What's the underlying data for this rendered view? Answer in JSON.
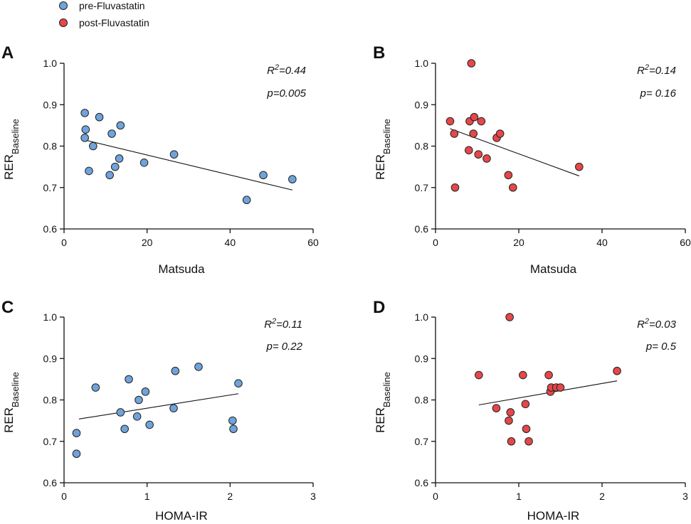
{
  "legend": [
    {
      "label": "pre-Fluvastatin",
      "color": "#6FA3DA"
    },
    {
      "label": "post-Fluvastatin",
      "color": "#E5474A"
    }
  ],
  "colors": {
    "axis": "#111111",
    "marker_edge": "#222222",
    "regression": "#111111"
  },
  "chart_data": [
    {
      "panel": "A",
      "type": "scatter",
      "series": "pre-Fluvastatin",
      "color": "#6FA3DA",
      "xlabel": "Matsuda",
      "ylabel_main": "RER",
      "ylabel_sub": "Baseline",
      "xlim": [
        0,
        60
      ],
      "ylim": [
        0.6,
        1.0
      ],
      "xticks": [
        "0",
        "20",
        "40",
        "60"
      ],
      "yticks": [
        "0.6",
        "0.7",
        "0.8",
        "0.9",
        "1.0"
      ],
      "x": [
        5,
        5.2,
        5,
        6,
        7,
        8.5,
        11,
        11.5,
        12.3,
        13.3,
        13.6,
        19.3,
        26.5,
        44,
        48,
        55
      ],
      "y": [
        0.88,
        0.84,
        0.82,
        0.74,
        0.8,
        0.87,
        0.73,
        0.83,
        0.75,
        0.77,
        0.85,
        0.76,
        0.78,
        0.67,
        0.73,
        0.72
      ],
      "fit": [
        [
          4.5,
          0.816
        ],
        [
          55,
          0.694
        ]
      ],
      "r2_prefix": "R",
      "r2_sup": "2",
      "r2_value": "=0.44",
      "p_text": "p=0.005"
    },
    {
      "panel": "B",
      "type": "scatter",
      "series": "post-Fluvastatin",
      "color": "#E5474A",
      "xlabel": "Matsuda",
      "ylabel_main": "RER",
      "ylabel_sub": "Baseline",
      "xlim": [
        0,
        60
      ],
      "ylim": [
        0.6,
        1.0
      ],
      "xticks": [
        "0",
        "20",
        "40",
        "60"
      ],
      "yticks": [
        "0.6",
        "0.7",
        "0.8",
        "0.9",
        "1.0"
      ],
      "x": [
        3.5,
        4.5,
        4.7,
        8,
        8.2,
        8.6,
        9.1,
        9.3,
        10.3,
        11,
        12.3,
        14.7,
        15.5,
        17.5,
        18.6,
        34.5
      ],
      "y": [
        0.86,
        0.83,
        0.7,
        0.79,
        0.86,
        1.0,
        0.83,
        0.87,
        0.78,
        0.86,
        0.77,
        0.82,
        0.83,
        0.73,
        0.7,
        0.75
      ],
      "fit": [
        [
          3.5,
          0.842
        ],
        [
          34.5,
          0.728
        ]
      ],
      "r2_prefix": "R",
      "r2_sup": "2",
      "r2_value": "=0.14",
      "p_text": "p= 0.16"
    },
    {
      "panel": "C",
      "type": "scatter",
      "series": "pre-Fluvastatin",
      "color": "#6FA3DA",
      "xlabel": "HOMA-IR",
      "ylabel_main": "RER",
      "ylabel_sub": "Baseline",
      "xlim": [
        0,
        3
      ],
      "ylim": [
        0.6,
        1.0
      ],
      "xticks": [
        "0",
        "1",
        "2",
        "3"
      ],
      "yticks": [
        "0.6",
        "0.7",
        "0.8",
        "0.9",
        "1.0"
      ],
      "x": [
        0.15,
        0.15,
        0.38,
        0.68,
        0.73,
        0.78,
        0.88,
        0.9,
        0.98,
        1.03,
        1.32,
        1.34,
        1.62,
        2.03,
        2.04,
        2.1
      ],
      "y": [
        0.72,
        0.67,
        0.83,
        0.77,
        0.73,
        0.85,
        0.76,
        0.8,
        0.82,
        0.74,
        0.78,
        0.87,
        0.88,
        0.75,
        0.73,
        0.84
      ],
      "fit": [
        [
          0.18,
          0.754
        ],
        [
          2.1,
          0.815
        ]
      ],
      "r2_prefix": "R",
      "r2_sup": "2",
      "r2_value": "=0.11",
      "p_text": "p= 0.22"
    },
    {
      "panel": "D",
      "type": "scatter",
      "series": "post-Fluvastatin",
      "color": "#E5474A",
      "xlabel": "HOMA-IR",
      "ylabel_main": "RER",
      "ylabel_sub": "Baseline",
      "xlim": [
        0,
        3
      ],
      "ylim": [
        0.6,
        1.0
      ],
      "xticks": [
        "0",
        "1",
        "2",
        "3"
      ],
      "yticks": [
        "0.6",
        "0.7",
        "0.8",
        "0.9",
        "1.0"
      ],
      "x": [
        0.52,
        0.73,
        0.88,
        0.89,
        0.9,
        0.91,
        1.05,
        1.08,
        1.09,
        1.12,
        1.36,
        1.38,
        1.39,
        1.45,
        1.5,
        2.18
      ],
      "y": [
        0.86,
        0.78,
        0.75,
        1.0,
        0.77,
        0.7,
        0.86,
        0.79,
        0.73,
        0.7,
        0.86,
        0.82,
        0.83,
        0.83,
        0.83,
        0.87
      ],
      "fit": [
        [
          0.52,
          0.788
        ],
        [
          2.18,
          0.846
        ]
      ],
      "r2_prefix": "R",
      "r2_sup": "2",
      "r2_value": "=0.03",
      "p_text": "p= 0.5"
    }
  ]
}
